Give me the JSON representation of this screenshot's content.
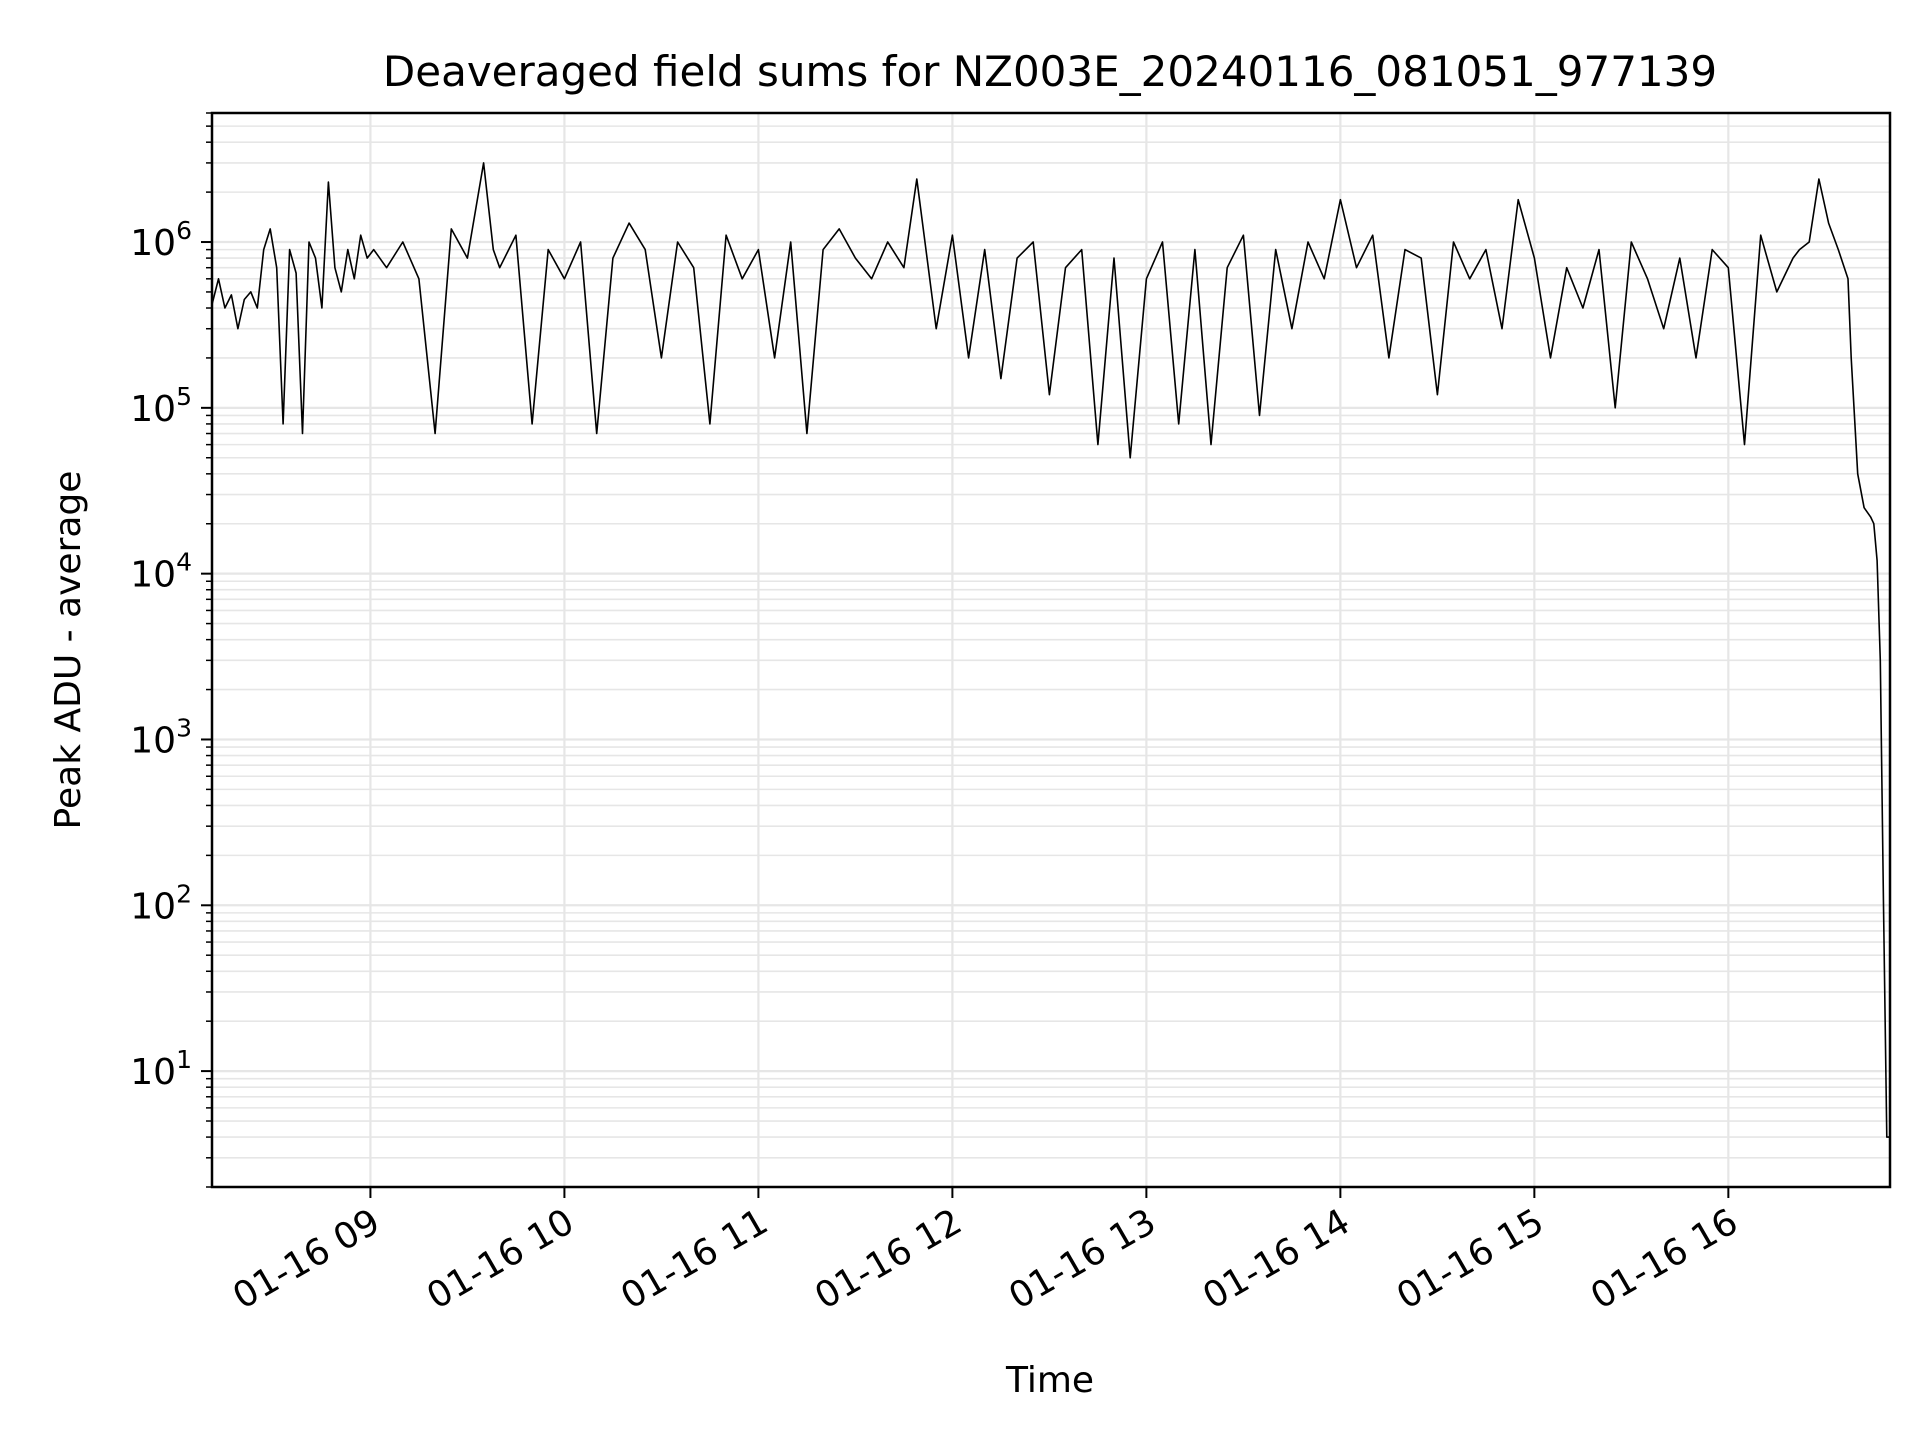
{
  "chart_data": {
    "type": "line",
    "title": "Deaveraged field sums for NZ003E_20240116_081051_977139",
    "xlabel": "Time",
    "ylabel": "Peak ADU - average",
    "yscale": "log",
    "grid": true,
    "legend": "none",
    "line_color": "#000000",
    "grid_color": "#e6e6e6",
    "x_date": "2024-01-16",
    "xlim": [
      "2024-01-16 08:11",
      "2024-01-16 16:50"
    ],
    "ylim": [
      2,
      6000000
    ],
    "x_ticks": [
      {
        "label": "01-16 09",
        "time": "2024-01-16 09:00"
      },
      {
        "label": "01-16 10",
        "time": "2024-01-16 10:00"
      },
      {
        "label": "01-16 11",
        "time": "2024-01-16 11:00"
      },
      {
        "label": "01-16 12",
        "time": "2024-01-16 12:00"
      },
      {
        "label": "01-16 13",
        "time": "2024-01-16 13:00"
      },
      {
        "label": "01-16 14",
        "time": "2024-01-16 14:00"
      },
      {
        "label": "01-16 15",
        "time": "2024-01-16 15:00"
      },
      {
        "label": "01-16 16",
        "time": "2024-01-16 16:00"
      }
    ],
    "y_ticks": [
      {
        "base": "10",
        "exp": "1",
        "value": 10
      },
      {
        "base": "10",
        "exp": "2",
        "value": 100
      },
      {
        "base": "10",
        "exp": "3",
        "value": 1000
      },
      {
        "base": "10",
        "exp": "4",
        "value": 10000
      },
      {
        "base": "10",
        "exp": "5",
        "value": 100000
      },
      {
        "base": "10",
        "exp": "6",
        "value": 1000000
      }
    ],
    "series": [
      {
        "x": [
          "08:11",
          "08:13",
          "08:15",
          "08:17",
          "08:19",
          "08:21",
          "08:23",
          "08:25",
          "08:27",
          "08:29",
          "08:31",
          "08:33",
          "08:35",
          "08:37",
          "08:39",
          "08:41",
          "08:43",
          "08:45",
          "08:47",
          "08:49",
          "08:51",
          "08:53",
          "08:55",
          "08:57",
          "08:59",
          "09:01",
          "09:05",
          "09:10",
          "09:15",
          "09:20",
          "09:25",
          "09:30",
          "09:35",
          "09:38",
          "09:40",
          "09:45",
          "09:50",
          "09:55",
          "10:00",
          "10:05",
          "10:10",
          "10:15",
          "10:20",
          "10:25",
          "10:30",
          "10:35",
          "10:40",
          "10:45",
          "10:50",
          "10:55",
          "11:00",
          "11:05",
          "11:10",
          "11:15",
          "11:20",
          "11:25",
          "11:30",
          "11:35",
          "11:40",
          "11:45",
          "11:49",
          "11:55",
          "12:00",
          "12:05",
          "12:10",
          "12:15",
          "12:20",
          "12:25",
          "12:30",
          "12:35",
          "12:40",
          "12:45",
          "12:50",
          "12:55",
          "13:00",
          "13:05",
          "13:10",
          "13:15",
          "13:20",
          "13:25",
          "13:30",
          "13:35",
          "13:40",
          "13:45",
          "13:50",
          "13:55",
          "14:00",
          "14:05",
          "14:10",
          "14:15",
          "14:20",
          "14:25",
          "14:30",
          "14:35",
          "14:40",
          "14:45",
          "14:50",
          "14:55",
          "15:00",
          "15:05",
          "15:10",
          "15:15",
          "15:20",
          "15:25",
          "15:30",
          "15:35",
          "15:40",
          "15:45",
          "15:50",
          "15:55",
          "16:00",
          "16:05",
          "16:10",
          "16:15",
          "16:20",
          "16:22",
          "16:25",
          "16:28",
          "16:31",
          "16:34",
          "16:37",
          "16:38",
          "16:40",
          "16:42",
          "16:44",
          "16:45",
          "16:46",
          "16:47",
          "16:48",
          "16:49",
          "16:50"
        ],
        "y": [
          420000,
          600000,
          400000,
          480000,
          300000,
          450000,
          500000,
          400000,
          900000,
          1200000,
          700000,
          80000,
          900000,
          650000,
          70000,
          1000000,
          800000,
          400000,
          2300000,
          700000,
          500000,
          900000,
          600000,
          1100000,
          800000,
          900000,
          700000,
          1000000,
          600000,
          70000,
          1200000,
          800000,
          3000000,
          900000,
          700000,
          1100000,
          80000,
          900000,
          600000,
          1000000,
          70000,
          800000,
          1300000,
          900000,
          200000,
          1000000,
          700000,
          80000,
          1100000,
          600000,
          900000,
          200000,
          1000000,
          70000,
          900000,
          1200000,
          800000,
          600000,
          1000000,
          700000,
          2400000,
          300000,
          1100000,
          200000,
          900000,
          150000,
          800000,
          1000000,
          120000,
          700000,
          900000,
          60000,
          800000,
          50000,
          600000,
          1000000,
          80000,
          900000,
          60000,
          700000,
          1100000,
          90000,
          900000,
          300000,
          1000000,
          600000,
          1800000,
          700000,
          1100000,
          200000,
          900000,
          800000,
          120000,
          1000000,
          600000,
          900000,
          300000,
          1800000,
          800000,
          200000,
          700000,
          400000,
          900000,
          100000,
          1000000,
          600000,
          300000,
          800000,
          200000,
          900000,
          700000,
          60000,
          1100000,
          500000,
          800000,
          900000,
          1000000,
          2400000,
          1300000,
          900000,
          600000,
          200000,
          40000,
          25000,
          22000,
          20000,
          12000,
          3000,
          100,
          4,
          4
        ]
      }
    ]
  }
}
